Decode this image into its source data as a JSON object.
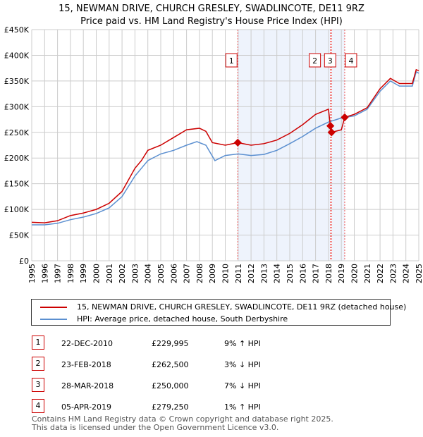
{
  "chart_data": {
    "type": "line",
    "title": "15, NEWMAN DRIVE, CHURCH GRESLEY, SWADLINCOTE, DE11 9RZ",
    "subtitle": "Price paid vs. HM Land Registry's House Price Index (HPI)",
    "xlim": [
      1995,
      2025
    ],
    "ylim": [
      0,
      450000
    ],
    "x_ticks": [
      "1995",
      "1996",
      "1997",
      "1998",
      "1999",
      "2000",
      "2001",
      "2002",
      "2003",
      "2004",
      "2005",
      "2006",
      "2007",
      "2008",
      "2009",
      "2010",
      "2011",
      "2012",
      "2013",
      "2014",
      "2015",
      "2016",
      "2017",
      "2018",
      "2019",
      "2020",
      "2021",
      "2022",
      "2023",
      "2024",
      "2025"
    ],
    "y_ticks": [
      {
        "v": 0,
        "label": "£0"
      },
      {
        "v": 50000,
        "label": "£50K"
      },
      {
        "v": 100000,
        "label": "£100K"
      },
      {
        "v": 150000,
        "label": "£150K"
      },
      {
        "v": 200000,
        "label": "£200K"
      },
      {
        "v": 250000,
        "label": "£250K"
      },
      {
        "v": 300000,
        "label": "£300K"
      },
      {
        "v": 350000,
        "label": "£350K"
      },
      {
        "v": 400000,
        "label": "£400K"
      },
      {
        "v": 450000,
        "label": "£450K"
      }
    ],
    "grid": true,
    "series": [
      {
        "name": "15, NEWMAN DRIVE, CHURCH GRESLEY, SWADLINCOTE, DE11 9RZ (detached house)",
        "color": "#cc0000",
        "x": [
          1995,
          1996,
          1997,
          1998,
          1999,
          2000,
          2001,
          2002,
          2003,
          2003.5,
          2004,
          2005,
          2006,
          2007,
          2008,
          2008.5,
          2009,
          2010,
          2010.97,
          2012,
          2013,
          2014,
          2015,
          2016,
          2017,
          2018.0,
          2018.15,
          2018.24,
          2019.0,
          2019.26,
          2020,
          2021,
          2022,
          2022.8,
          2023.5,
          2024.5,
          2024.8,
          2025
        ],
        "y": [
          75000,
          74000,
          78000,
          88000,
          93000,
          100000,
          112000,
          135000,
          180000,
          195000,
          215000,
          225000,
          240000,
          255000,
          258000,
          252000,
          230000,
          225000,
          229995,
          225000,
          228000,
          235000,
          248000,
          265000,
          285000,
          295000,
          262500,
          250000,
          255000,
          279250,
          285000,
          298000,
          335000,
          355000,
          345000,
          345000,
          372000,
          370000
        ]
      },
      {
        "name": "HPI: Average price, detached house, South Derbyshire",
        "color": "#5b8fd0",
        "x": [
          1995,
          1996,
          1997,
          1998,
          1999,
          2000,
          2001,
          2002,
          2003,
          2003.5,
          2004,
          2005,
          2006,
          2007,
          2007.8,
          2008.5,
          2009.2,
          2010,
          2011,
          2012,
          2013,
          2014,
          2015,
          2016,
          2017,
          2018,
          2019,
          2020,
          2021,
          2022,
          2022.8,
          2023.5,
          2024.5,
          2024.8,
          2025
        ],
        "y": [
          70000,
          70000,
          73000,
          80000,
          85000,
          92000,
          103000,
          125000,
          165000,
          180000,
          195000,
          208000,
          215000,
          225000,
          232000,
          225000,
          195000,
          205000,
          208000,
          205000,
          207000,
          215000,
          228000,
          242000,
          258000,
          270000,
          278000,
          282000,
          295000,
          330000,
          350000,
          340000,
          340000,
          368000,
          365000
        ]
      }
    ],
    "sales": [
      {
        "n": "1",
        "x": 2010.97,
        "y": 229995,
        "date": "22-DEC-2010",
        "price": "£229,995",
        "hpi": "9% ↑ HPI"
      },
      {
        "n": "2",
        "x": 2018.15,
        "y": 262500,
        "date": "23-FEB-2018",
        "price": "£262,500",
        "hpi": "3% ↓ HPI"
      },
      {
        "n": "3",
        "x": 2018.24,
        "y": 250000,
        "date": "28-MAR-2018",
        "price": "£250,000",
        "hpi": "7% ↓ HPI"
      },
      {
        "n": "4",
        "x": 2019.26,
        "y": 279250,
        "date": "05-APR-2019",
        "price": "£279,250",
        "hpi": "1% ↑ HPI"
      }
    ],
    "legend": "below"
  },
  "legend": {
    "property": "15, NEWMAN DRIVE, CHURCH GRESLEY, SWADLINCOTE, DE11 9RZ (detached house)",
    "hpi": "HPI: Average price, detached house, South Derbyshire"
  },
  "footer": {
    "line1": "Contains HM Land Registry data © Crown copyright and database right 2025.",
    "line2": "This data is licensed under the Open Government Licence v3.0."
  }
}
